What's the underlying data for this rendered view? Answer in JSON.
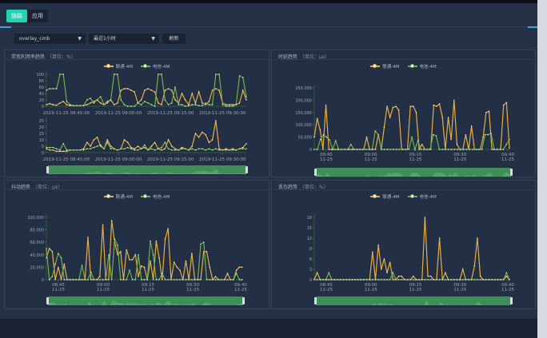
{
  "tabs": [
    {
      "label": "链路",
      "active": true
    },
    {
      "label": "应用",
      "active": false
    }
  ],
  "filters": {
    "device": "overlay_cmb",
    "range": "最近1小时",
    "refresh_label": "刷新"
  },
  "colors": {
    "unicom": "#e5ad45",
    "telecom": "#6db04b",
    "slider": "#3f8e58"
  },
  "legend": [
    "联通-4M",
    "电信-4M"
  ],
  "panels": [
    {
      "title": "带宽利用率趋势",
      "unit": "（单位：%）"
    },
    {
      "title": "时延趋势",
      "unit": "（单位：μs）"
    },
    {
      "title": "抖动趋势",
      "unit": "（单位：μs）"
    },
    {
      "title": "丢包趋势",
      "unit": "（单位：%）"
    }
  ],
  "chart_data": [
    {
      "type": "line",
      "id": "bw-upper",
      "ylim": [
        0,
        100
      ],
      "yticks": [
        "0",
        "20",
        "40",
        "60",
        "80",
        "100"
      ],
      "xticks": [
        "2019-11-25 08:45:00",
        "2019-11-25 09:00:00",
        "2019-11-25 09:15:00",
        "2019-11-25 09:30:00"
      ],
      "series": [
        {
          "name": "联通-4M",
          "values": [
            5,
            8,
            5,
            3,
            10,
            15,
            5,
            2,
            2,
            2,
            2,
            3,
            5,
            10,
            15,
            20,
            10,
            5,
            15,
            20,
            5,
            10,
            50,
            55,
            55,
            50,
            45,
            10,
            20,
            50,
            55,
            50,
            45,
            10,
            5,
            50,
            55,
            50,
            20,
            10,
            40,
            20,
            5,
            40,
            10,
            45,
            10,
            5,
            15,
            50,
            55,
            50,
            10,
            5,
            5,
            5,
            5,
            10,
            50,
            20
          ]
        },
        {
          "name": "电信-4M",
          "values": [
            50,
            55,
            55,
            55,
            100,
            100,
            15,
            5,
            2,
            2,
            2,
            2,
            20,
            25,
            10,
            20,
            30,
            5,
            10,
            20,
            100,
            100,
            20,
            5,
            0,
            0,
            0,
            10,
            5,
            15,
            10,
            5,
            0,
            100,
            100,
            20,
            5,
            10,
            60,
            5,
            5,
            0,
            2,
            5,
            5,
            2,
            2,
            10,
            5,
            5,
            100,
            100,
            5,
            0,
            0,
            0,
            5,
            95,
            90,
            30
          ]
        }
      ]
    },
    {
      "type": "line",
      "id": "bw-lower",
      "ylim": [
        0,
        25
      ],
      "yticks": [
        "0",
        "5",
        "10",
        "15",
        "20",
        "25"
      ],
      "xticks": [
        "2019-11-25 08:45:00",
        "2019-11-25 09:00:00",
        "2019-11-25 09:15:00",
        "2019-11-25 09:30:00"
      ],
      "series": [
        {
          "name": "联通-4M",
          "values": [
            3,
            2,
            2,
            1,
            1,
            1,
            1,
            2,
            2,
            2,
            2,
            3,
            8,
            5,
            10,
            12,
            5,
            3,
            10,
            5,
            3,
            2,
            3,
            10,
            8,
            4,
            3,
            5,
            3,
            4,
            2,
            5,
            8,
            3,
            2,
            3,
            10,
            5,
            3,
            2,
            4,
            3,
            2,
            5,
            15,
            12,
            16,
            14,
            8,
            10,
            25,
            3,
            2,
            3,
            2,
            3,
            2,
            3,
            4,
            7
          ]
        },
        {
          "name": "电信-4M",
          "values": [
            4,
            4,
            4,
            3,
            2,
            7,
            2,
            2,
            2,
            2,
            2,
            2,
            3,
            3,
            4,
            5,
            6,
            3,
            8,
            3,
            3,
            2,
            3,
            3,
            4,
            3,
            2,
            2,
            3,
            6,
            2,
            3,
            2,
            3,
            4,
            8,
            3,
            2,
            2,
            2,
            3,
            3,
            2,
            3,
            2,
            3,
            3,
            2,
            3,
            2,
            3,
            2,
            2,
            2,
            2,
            2,
            2,
            3,
            3,
            3
          ]
        }
      ]
    },
    {
      "type": "line",
      "id": "latency",
      "ylim": [
        0,
        250000
      ],
      "yticks": [
        "0",
        "50,000",
        "100,000",
        "150,000",
        "200,000",
        "250,000"
      ],
      "xticks": [
        "09:45|11-25",
        "09:00|11-25",
        "09:15|11-25",
        "09:30|11-25",
        "09:40|11-25"
      ],
      "series": [
        {
          "name": "联通-4M",
          "values": [
            50000,
            125000,
            80000,
            0,
            180000,
            0,
            0,
            0,
            0,
            0,
            0,
            0,
            0,
            0,
            0,
            0,
            0,
            0,
            50000,
            0,
            0,
            0,
            60000,
            0,
            90000,
            175000,
            130000,
            170000,
            175000,
            160000,
            0,
            0,
            0,
            175000,
            175000,
            150000,
            0,
            20000,
            0,
            0,
            0,
            180000,
            175000,
            185000,
            130000,
            0,
            130000,
            40000,
            200000,
            20000,
            0,
            0,
            60000,
            0,
            95000,
            0,
            0,
            0,
            50000,
            150000,
            155000,
            0,
            0,
            0,
            0,
            180000,
            190000,
            5000
          ]
        },
        {
          "name": "电信-4M",
          "values": [
            0,
            0,
            40000,
            60000,
            50000,
            40000,
            0,
            35000,
            0,
            0,
            0,
            0,
            20000,
            0,
            0,
            0,
            0,
            0,
            0,
            0,
            75000,
            60000,
            0,
            0,
            0,
            0,
            0,
            0,
            0,
            0,
            0,
            0,
            50000,
            0,
            35000,
            0,
            0,
            0,
            0,
            60000,
            55000,
            0,
            0,
            0,
            0,
            0,
            0,
            0,
            0,
            0,
            0,
            0,
            0,
            0,
            0,
            0,
            60000,
            60000,
            65000,
            0,
            0,
            0,
            0,
            20000,
            40000
          ]
        }
      ]
    },
    {
      "type": "line",
      "id": "jitter",
      "ylim": [
        0,
        100000
      ],
      "yticks": [
        "0",
        "20,000",
        "40,000",
        "60,000",
        "80,000",
        "100,000"
      ],
      "xticks": [
        "08:45|11-25",
        "09:00|11-25",
        "09:15|11-25",
        "09:30|11-25",
        "09:40|11-25"
      ],
      "series": [
        {
          "name": "联通-4M",
          "values": [
            35000,
            50000,
            45000,
            0,
            20000,
            0,
            25000,
            0,
            0,
            0,
            0,
            0,
            0,
            0,
            68000,
            0,
            0,
            0,
            5000,
            88000,
            0,
            0,
            95000,
            60000,
            40000,
            45000,
            0,
            48000,
            32000,
            32000,
            40000,
            5000,
            22000,
            20000,
            0,
            30000,
            0,
            62000,
            35000,
            0,
            65000,
            82000,
            0,
            28000,
            20000,
            15000,
            0,
            30000,
            0,
            42000,
            0,
            0,
            0,
            45000,
            45000,
            20000,
            0,
            5000,
            0,
            0,
            0,
            10000,
            0,
            0,
            15000,
            20000,
            20000
          ]
        },
        {
          "name": "电信-4M",
          "values": [
            50000,
            0,
            5000,
            25000,
            42000,
            35000,
            0,
            0,
            0,
            0,
            0,
            0,
            23000,
            0,
            0,
            12000,
            0,
            0,
            0,
            0,
            0,
            40000,
            0,
            65000,
            55000,
            0,
            0,
            0,
            15000,
            0,
            0,
            40000,
            0,
            0,
            0,
            62000,
            40000,
            0,
            0,
            10000,
            0,
            0,
            0,
            0,
            0,
            0,
            0,
            0,
            0,
            0,
            0,
            0,
            57000,
            60000,
            0,
            0,
            0,
            0,
            0,
            0,
            0,
            0,
            0,
            0,
            10000,
            0,
            0
          ]
        }
      ]
    },
    {
      "type": "line",
      "id": "loss",
      "ylim": [
        0,
        18
      ],
      "yticks": [
        "0",
        "3",
        "6",
        "9",
        "12",
        "15",
        "18"
      ],
      "xticks": [
        "08:45|11-25",
        "09:00|11-25",
        "09:15|11-25",
        "09:30|11-25",
        "09:40|11-25"
      ],
      "series": [
        {
          "name": "联通-4M",
          "values": [
            0,
            2,
            0,
            0,
            0,
            0,
            0,
            0,
            0,
            0,
            0,
            0,
            0,
            0,
            0,
            0,
            0,
            0,
            0,
            0,
            8,
            0,
            10,
            3,
            6,
            2,
            5,
            0,
            0,
            1,
            1,
            0,
            0,
            0,
            1,
            0,
            0,
            0,
            18,
            1,
            1,
            0,
            0,
            12,
            0,
            2,
            0,
            0,
            0,
            0,
            0,
            3,
            0,
            0,
            0,
            4,
            12,
            1,
            0,
            0,
            0,
            0,
            0,
            0,
            0,
            0,
            1,
            0
          ]
        },
        {
          "name": "电信-4M",
          "values": [
            0,
            0,
            0,
            0,
            0,
            2,
            0,
            0,
            0,
            0,
            0,
            0,
            0,
            0,
            0,
            0,
            0,
            0,
            0,
            0,
            0,
            0,
            0,
            0,
            0,
            0,
            0,
            2,
            0,
            0,
            0,
            0,
            0,
            0,
            0,
            0,
            0,
            0,
            0,
            0,
            0,
            0,
            0,
            0,
            0,
            0,
            0,
            0,
            0,
            0,
            0,
            0,
            0,
            0,
            0,
            0,
            0,
            0,
            0,
            0,
            0,
            0,
            0,
            0,
            0,
            0,
            2,
            0
          ]
        }
      ]
    }
  ]
}
